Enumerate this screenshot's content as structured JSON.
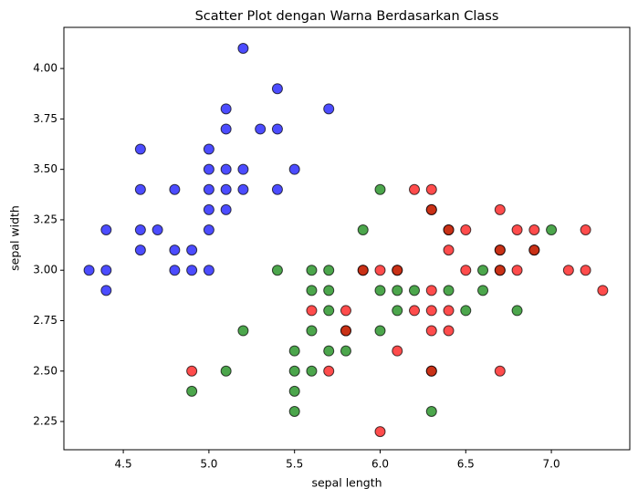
{
  "chart_data": {
    "type": "scatter",
    "title": "Scatter Plot dengan Warna Berdasarkan Class",
    "x_label": "sepal length",
    "y_label": "sepal width",
    "xlim": [
      4.153,
      7.458
    ],
    "ylim": [
      2.11,
      4.204
    ],
    "xticks": [
      4.5,
      {
        "value": 5.0,
        "label": "5.0"
      },
      5.5,
      {
        "value": 6.0,
        "label": "6.0"
      },
      6.5,
      {
        "value": 7.0,
        "label": "7.0"
      }
    ],
    "yticks": [
      2.25,
      {
        "value": 2.5,
        "label": "2.50"
      },
      2.75,
      {
        "value": 3.0,
        "label": "3.00"
      },
      3.25,
      {
        "value": 3.5,
        "label": "3.50"
      },
      3.75,
      {
        "value": 4.0,
        "label": "4.00"
      }
    ],
    "series": [
      {
        "color": "#0000ff",
        "x": [
          4.3,
          4.4,
          4.4,
          4.4,
          4.6,
          4.6,
          4.6,
          4.6,
          4.7,
          4.8,
          4.8,
          4.8,
          4.9,
          4.9,
          5.0,
          5.0,
          5.0,
          5.0,
          5.0,
          5.0,
          5.1,
          5.1,
          5.1,
          5.1,
          5.1,
          5.2,
          5.2,
          5.2,
          5.3,
          5.4,
          5.4,
          5.4,
          5.5,
          5.7
        ],
        "y": [
          3.0,
          3.2,
          3.0,
          2.9,
          3.6,
          3.4,
          3.2,
          3.1,
          3.2,
          3.4,
          3.1,
          3.0,
          3.1,
          3.0,
          3.6,
          3.5,
          3.4,
          3.3,
          3.2,
          3.0,
          3.8,
          3.7,
          3.5,
          3.4,
          3.3,
          4.1,
          3.5,
          3.4,
          3.7,
          3.9,
          3.7,
          3.4,
          3.5,
          3.8
        ]
      },
      {
        "color": "#008000",
        "x": [
          4.9,
          5.1,
          5.2,
          5.4,
          5.5,
          5.5,
          5.5,
          5.5,
          5.6,
          5.6,
          5.6,
          5.6,
          5.7,
          5.7,
          5.7,
          5.7,
          5.8,
          5.8,
          5.9,
          5.9,
          6.0,
          6.0,
          6.0,
          6.1,
          6.1,
          6.1,
          6.2,
          6.3,
          6.3,
          6.3,
          6.4,
          6.4,
          6.5,
          6.6,
          6.6,
          6.7,
          6.7,
          6.8,
          6.9,
          7.0
        ],
        "y": [
          2.4,
          2.5,
          2.7,
          3.0,
          2.6,
          2.5,
          2.4,
          2.3,
          3.0,
          2.9,
          2.7,
          2.5,
          3.0,
          2.9,
          2.8,
          2.6,
          2.7,
          2.6,
          3.2,
          3.0,
          3.4,
          2.9,
          2.7,
          3.0,
          2.9,
          2.8,
          2.9,
          3.3,
          2.5,
          2.3,
          3.2,
          2.9,
          2.8,
          3.0,
          2.9,
          3.1,
          3.0,
          2.8,
          3.1,
          3.2
        ]
      },
      {
        "color": "#ff0000",
        "x": [
          4.9,
          5.6,
          5.7,
          5.8,
          5.8,
          5.9,
          6.0,
          6.0,
          6.1,
          6.1,
          6.2,
          6.2,
          6.3,
          6.3,
          6.3,
          6.3,
          6.3,
          6.3,
          6.4,
          6.4,
          6.4,
          6.4,
          6.5,
          6.5,
          6.7,
          6.7,
          6.7,
          6.7,
          6.8,
          6.8,
          6.9,
          6.9,
          7.1,
          7.2,
          7.2,
          7.3
        ],
        "y": [
          2.5,
          2.8,
          2.5,
          2.8,
          2.7,
          3.0,
          3.0,
          2.2,
          3.0,
          2.6,
          3.4,
          2.8,
          3.4,
          3.3,
          2.9,
          2.8,
          2.7,
          2.5,
          3.2,
          3.1,
          2.8,
          2.7,
          3.2,
          3.0,
          3.3,
          3.1,
          3.0,
          2.5,
          3.2,
          3.0,
          3.2,
          3.1,
          3.0,
          3.2,
          3.0,
          2.9
        ]
      }
    ]
  }
}
